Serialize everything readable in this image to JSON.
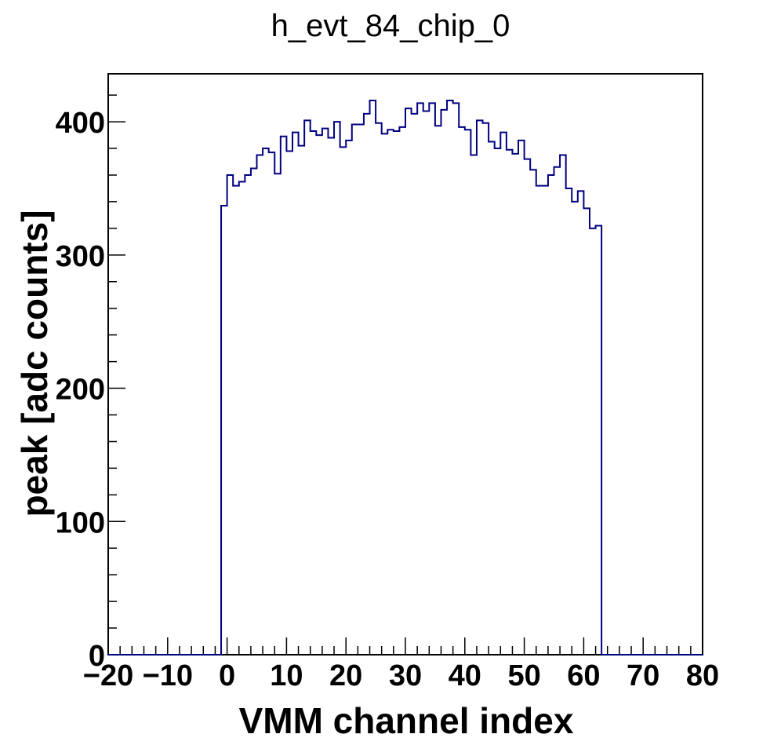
{
  "chart_data": {
    "type": "histogram-step",
    "title": "h_evt_84_chip_0",
    "xlabel": "VMM channel index",
    "ylabel": "peak [adc counts]",
    "xlim": [
      -20,
      80
    ],
    "ylim": [
      0,
      436
    ],
    "x_ticks": [
      "−20",
      "−10",
      "0",
      "10",
      "20",
      "30",
      "40",
      "50",
      "60",
      "70",
      "80"
    ],
    "y_ticks": [
      "0",
      "100",
      "200",
      "300",
      "400"
    ],
    "line_color": "#000080",
    "bin_width": 1,
    "bin_start": -1,
    "series": [
      {
        "values": [
          337,
          360,
          352,
          355,
          360,
          365,
          375,
          380,
          377,
          361,
          389,
          378,
          392,
          382,
          401,
          393,
          390,
          395,
          388,
          400,
          381,
          386,
          398,
          398,
          406,
          416,
          399,
          391,
          394,
          393,
          396,
          410,
          406,
          414,
          408,
          414,
          397,
          409,
          416,
          414,
          396,
          394,
          375,
          401,
          399,
          385,
          380,
          392,
          379,
          376,
          386,
          372,
          364,
          352,
          352,
          360,
          366,
          375,
          350,
          340,
          348,
          335,
          320,
          322
        ]
      }
    ]
  }
}
